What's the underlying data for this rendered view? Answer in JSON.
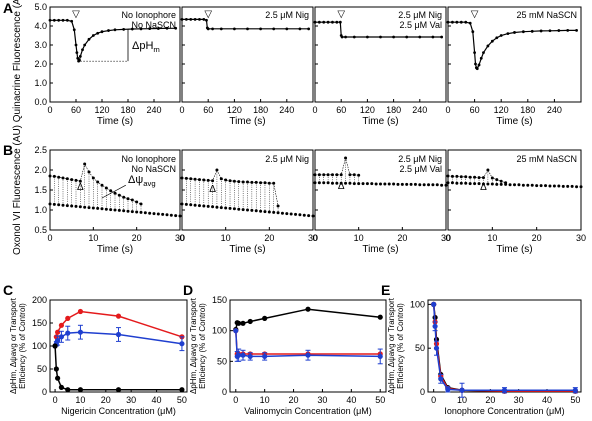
{
  "figure": {
    "panel_letters": [
      "A",
      "B",
      "C",
      "D",
      "E"
    ]
  },
  "chart_data": [
    {
      "panel": "A",
      "type": "line",
      "ylabel": "Quinacrine Fluorescence (AU)",
      "xlabel": "Time (s)",
      "ylim": [
        0,
        5
      ],
      "yticks": [
        "0.0",
        "1.0",
        "2.0",
        "3.0",
        "4.0",
        "5.0"
      ],
      "xlim": [
        0,
        300
      ],
      "xticks": [
        "0",
        "60",
        "120",
        "180",
        "240"
      ],
      "grid": false,
      "subpanels": [
        {
          "labels": [
            "No Ionophore",
            "No NaSCN"
          ],
          "annotation": "ΔpH",
          "annotation_sub": "m",
          "marker": "▽",
          "x": [
            0,
            10,
            20,
            30,
            40,
            50,
            56,
            60,
            62,
            64,
            66,
            68,
            70,
            75,
            80,
            90,
            100,
            110,
            120,
            135,
            150,
            170,
            190,
            210,
            230,
            250,
            270,
            290
          ],
          "y": [
            4.3,
            4.3,
            4.3,
            4.3,
            4.3,
            4.25,
            3.8,
            3.0,
            2.6,
            2.3,
            2.15,
            2.2,
            2.4,
            2.75,
            3.0,
            3.3,
            3.5,
            3.62,
            3.7,
            3.76,
            3.8,
            3.82,
            3.84,
            3.85,
            3.86,
            3.87,
            3.88,
            3.88
          ]
        },
        {
          "labels": [
            "2.5 μM Nig"
          ],
          "marker": "▽",
          "x": [
            0,
            10,
            20,
            30,
            40,
            50,
            56,
            58,
            60,
            70,
            90,
            120,
            150,
            180,
            210,
            240,
            270,
            290
          ],
          "y": [
            4.35,
            4.35,
            4.35,
            4.35,
            4.35,
            4.35,
            4.3,
            3.9,
            3.85,
            3.85,
            3.85,
            3.85,
            3.85,
            3.85,
            3.85,
            3.85,
            3.85,
            3.85
          ]
        },
        {
          "labels": [
            "2.5 μM Nig",
            "2.5 μM Val"
          ],
          "marker": "▽",
          "x": [
            0,
            10,
            20,
            30,
            40,
            50,
            58,
            60,
            62,
            70,
            90,
            120,
            150,
            180,
            210,
            240,
            270,
            290
          ],
          "y": [
            4.2,
            4.2,
            4.2,
            4.2,
            4.2,
            4.2,
            4.2,
            3.5,
            3.42,
            3.42,
            3.42,
            3.42,
            3.42,
            3.42,
            3.42,
            3.42,
            3.42,
            3.42
          ]
        },
        {
          "labels": [
            "25 mM NaSCN"
          ],
          "marker": "▽",
          "x": [
            0,
            10,
            20,
            30,
            40,
            50,
            56,
            60,
            62,
            64,
            66,
            70,
            75,
            80,
            90,
            100,
            110,
            120,
            135,
            150,
            170,
            190,
            210,
            230,
            250,
            270,
            290
          ],
          "y": [
            4.2,
            4.2,
            4.2,
            4.2,
            4.2,
            4.15,
            3.7,
            2.6,
            2.0,
            1.8,
            1.75,
            1.95,
            2.3,
            2.6,
            2.95,
            3.2,
            3.38,
            3.5,
            3.6,
            3.66,
            3.7,
            3.72,
            3.74,
            3.75,
            3.76,
            3.77,
            3.77
          ]
        }
      ]
    },
    {
      "panel": "B",
      "type": "scatter",
      "ylabel": "Oxonol VI Fluorescence (AU)",
      "xlabel": "Time (s)",
      "ylim": [
        0.5,
        2.5
      ],
      "yticks": [
        "0.5",
        "1.0",
        "1.5",
        "2.0",
        "2.5"
      ],
      "xlim": [
        0,
        30
      ],
      "xticks": [
        "0",
        "10",
        "20",
        "30"
      ],
      "grid": false,
      "subpanels": [
        {
          "labels": [
            "No Ionophore",
            "No NaSCN"
          ],
          "annotation": "Δψ",
          "annotation_sub": "avg",
          "marker": "Δ",
          "marker_x": 7,
          "upper_x": [
            0,
            1,
            2,
            3,
            4,
            5,
            6,
            7,
            8,
            9,
            10,
            11,
            12,
            13,
            14,
            15,
            16,
            17,
            18,
            19,
            20,
            21
          ],
          "upper_y": [
            1.85,
            1.84,
            1.82,
            1.8,
            1.78,
            1.76,
            1.74,
            1.72,
            2.15,
            1.95,
            1.8,
            1.7,
            1.62,
            1.55,
            1.48,
            1.42,
            1.37,
            1.32,
            1.28,
            1.25,
            1.2,
            1.15
          ],
          "lower_x": [
            0,
            1,
            2,
            3,
            4,
            5,
            6,
            7,
            8,
            9,
            10,
            11,
            12,
            13,
            14,
            15,
            16,
            17,
            18,
            19,
            20,
            21,
            22,
            23,
            24,
            25,
            26,
            27,
            28,
            29,
            30
          ],
          "lower_y": [
            1.15,
            1.14,
            1.13,
            1.12,
            1.11,
            1.1,
            1.09,
            1.08,
            1.07,
            1.06,
            1.05,
            1.04,
            1.03,
            1.02,
            1.01,
            1.0,
            0.99,
            0.98,
            0.97,
            0.96,
            0.95,
            0.94,
            0.93,
            0.92,
            0.91,
            0.9,
            0.89,
            0.88,
            0.87,
            0.86,
            0.85
          ]
        },
        {
          "labels": [
            "2.5 μM Nig"
          ],
          "marker": "Δ",
          "marker_x": 7,
          "upper_x": [
            0,
            1,
            2,
            3,
            4,
            5,
            6,
            7,
            8,
            9,
            10,
            11,
            12,
            13,
            14,
            15,
            16,
            17,
            18,
            19,
            20,
            21,
            22
          ],
          "upper_y": [
            1.8,
            1.79,
            1.78,
            1.77,
            1.76,
            1.75,
            1.74,
            1.73,
            2.0,
            1.78,
            1.75,
            1.73,
            1.72,
            1.71,
            1.7,
            1.7,
            1.69,
            1.69,
            1.68,
            1.68,
            1.67,
            1.67,
            1.1
          ],
          "lower_x": [
            0,
            1,
            2,
            3,
            4,
            5,
            6,
            7,
            8,
            9,
            10,
            11,
            12,
            13,
            14,
            15,
            16,
            17,
            18,
            19,
            20,
            21,
            22,
            23,
            24,
            25,
            26,
            27,
            28,
            29,
            30
          ],
          "lower_y": [
            1.15,
            1.14,
            1.13,
            1.12,
            1.11,
            1.1,
            1.09,
            1.08,
            1.07,
            1.06,
            1.05,
            1.04,
            1.03,
            1.02,
            1.01,
            1.0,
            0.99,
            0.98,
            0.97,
            0.96,
            0.95,
            0.94,
            0.93,
            0.92,
            0.91,
            0.9,
            0.89,
            0.88,
            0.87,
            0.86,
            0.85
          ]
        },
        {
          "labels": [
            "2.5 μM Nig",
            "2.5 μM Val"
          ],
          "marker": "Δ",
          "marker_x": 6,
          "upper_x": [
            0,
            1,
            2,
            3,
            4,
            5,
            6,
            7,
            8,
            9,
            10
          ],
          "upper_y": [
            1.88,
            1.88,
            1.88,
            1.88,
            1.88,
            1.88,
            1.88,
            2.3,
            1.88,
            1.88,
            1.87
          ],
          "lower_x": [
            0,
            1,
            2,
            3,
            4,
            5,
            6,
            7,
            8,
            9,
            10,
            11,
            12,
            13,
            14,
            15,
            16,
            17,
            18,
            19,
            20,
            21,
            22,
            23,
            24,
            25,
            26,
            27,
            28,
            29,
            30
          ],
          "lower_y": [
            1.68,
            1.68,
            1.68,
            1.68,
            1.67,
            1.67,
            1.67,
            1.67,
            1.67,
            1.66,
            1.66,
            1.66,
            1.66,
            1.66,
            1.65,
            1.65,
            1.65,
            1.65,
            1.65,
            1.64,
            1.64,
            1.64,
            1.64,
            1.64,
            1.63,
            1.63,
            1.63,
            1.63,
            1.63,
            1.62,
            1.62
          ]
        },
        {
          "labels": [
            "25 mM NaSCN"
          ],
          "marker": "Δ",
          "marker_x": 8,
          "upper_x": [
            0,
            1,
            2,
            3,
            4,
            5,
            6,
            7,
            8,
            9,
            10,
            11,
            12,
            13
          ],
          "upper_y": [
            1.85,
            1.84,
            1.84,
            1.83,
            1.83,
            1.82,
            1.82,
            1.81,
            1.81,
            2.0,
            1.8,
            1.76,
            1.72,
            1.68
          ],
          "lower_x": [
            0,
            1,
            2,
            3,
            4,
            5,
            6,
            7,
            8,
            9,
            10,
            11,
            12,
            13,
            14,
            15,
            16,
            17,
            18,
            19,
            20,
            21,
            22,
            23,
            24,
            25,
            26,
            27,
            28,
            29,
            30
          ],
          "lower_y": [
            1.68,
            1.68,
            1.67,
            1.67,
            1.67,
            1.66,
            1.66,
            1.66,
            1.65,
            1.65,
            1.65,
            1.64,
            1.64,
            1.64,
            1.63,
            1.63,
            1.63,
            1.62,
            1.62,
            1.62,
            1.61,
            1.61,
            1.61,
            1.6,
            1.6,
            1.6,
            1.59,
            1.59,
            1.59,
            1.58,
            1.58
          ]
        }
      ]
    },
    {
      "panel": "C",
      "type": "line",
      "ylabel": "ΔpHm, Δψavg or Transport Efficiency (% of Control)",
      "xlabel": "Nigericin Concentration (μM)",
      "ylim": [
        0,
        200
      ],
      "yticks": [
        "0",
        "50",
        "100",
        "150",
        "200"
      ],
      "xlim": [
        -2,
        52
      ],
      "xticks": [
        "0",
        "10",
        "20",
        "30",
        "40",
        "50"
      ],
      "grid": false,
      "series": [
        {
          "color": "#e41a1c",
          "x": [
            0,
            0.5,
            1,
            2.5,
            5,
            10,
            25,
            50
          ],
          "y": [
            100,
            120,
            130,
            145,
            160,
            175,
            165,
            120
          ],
          "err": [
            0,
            0,
            0,
            0,
            0,
            0,
            0,
            0
          ]
        },
        {
          "color": "#1f3fcf",
          "x": [
            0,
            0.5,
            1,
            2.5,
            5,
            10,
            25,
            50
          ],
          "y": [
            100,
            105,
            112,
            120,
            128,
            130,
            125,
            105
          ],
          "err": [
            0,
            5,
            10,
            12,
            15,
            15,
            15,
            15
          ]
        },
        {
          "color": "#000000",
          "x": [
            0,
            0.5,
            1,
            2.5,
            5,
            10,
            25,
            50
          ],
          "y": [
            100,
            50,
            30,
            10,
            5,
            5,
            5,
            5
          ],
          "err": [
            0,
            0,
            0,
            0,
            0,
            0,
            0,
            0
          ]
        }
      ]
    },
    {
      "panel": "D",
      "type": "line",
      "ylabel": "ΔpHm, Δψavg or Transport Efficiency (% of Control)",
      "xlabel": "Valinomycin Concentration (μM)",
      "ylim": [
        0,
        150
      ],
      "yticks": [
        "0",
        "50",
        "100",
        "150"
      ],
      "xlim": [
        -2,
        52
      ],
      "xticks": [
        "0",
        "10",
        "20",
        "30",
        "40",
        "50"
      ],
      "grid": false,
      "series": [
        {
          "color": "#000000",
          "x": [
            0,
            0.5,
            1,
            2.5,
            5,
            10,
            25,
            50
          ],
          "y": [
            102,
            113,
            112,
            112,
            115,
            120,
            135,
            122
          ],
          "err": [
            0,
            0,
            0,
            0,
            0,
            0,
            0,
            0
          ]
        },
        {
          "color": "#e41a1c",
          "x": [
            0,
            0.5,
            1,
            2.5,
            5,
            10,
            25,
            50
          ],
          "y": [
            100,
            62,
            62,
            62,
            62,
            62,
            62,
            62
          ],
          "err": [
            0,
            0,
            0,
            0,
            0,
            0,
            0,
            0
          ]
        },
        {
          "color": "#1f3fcf",
          "x": [
            0,
            0.5,
            1,
            2.5,
            5,
            10,
            25,
            50
          ],
          "y": [
            100,
            58,
            60,
            60,
            58,
            58,
            60,
            58
          ],
          "err": [
            0,
            8,
            10,
            8,
            6,
            6,
            8,
            12
          ]
        }
      ]
    },
    {
      "panel": "E",
      "type": "line",
      "ylabel": "ΔpHm, Δψavg or Transport Efficiency (% of Control)",
      "xlabel": "Ionophore Concentration (μM)",
      "ylim": [
        0,
        105
      ],
      "yticks": [
        "0",
        "50",
        "100"
      ],
      "xlim": [
        -2,
        52
      ],
      "xticks": [
        "0",
        "10",
        "20",
        "30",
        "40",
        "50"
      ],
      "grid": false,
      "series": [
        {
          "color": "#000000",
          "x": [
            0,
            0.5,
            1,
            2.5,
            5,
            10,
            25,
            50
          ],
          "y": [
            100,
            85,
            60,
            20,
            5,
            2,
            1,
            1
          ],
          "err": [
            0,
            0,
            0,
            0,
            0,
            0,
            0,
            0
          ]
        },
        {
          "color": "#e41a1c",
          "x": [
            0,
            0.5,
            1,
            2.5,
            5,
            10,
            25,
            50
          ],
          "y": [
            100,
            80,
            55,
            18,
            4,
            2,
            1,
            1
          ],
          "err": [
            0,
            0,
            0,
            0,
            0,
            0,
            0,
            0
          ]
        },
        {
          "color": "#1f3fcf",
          "x": [
            0,
            0.5,
            1,
            2.5,
            5,
            10,
            25,
            50
          ],
          "y": [
            100,
            75,
            50,
            15,
            3,
            2,
            2,
            2
          ],
          "err": [
            0,
            5,
            8,
            5,
            3,
            8,
            3,
            3
          ]
        }
      ]
    }
  ]
}
